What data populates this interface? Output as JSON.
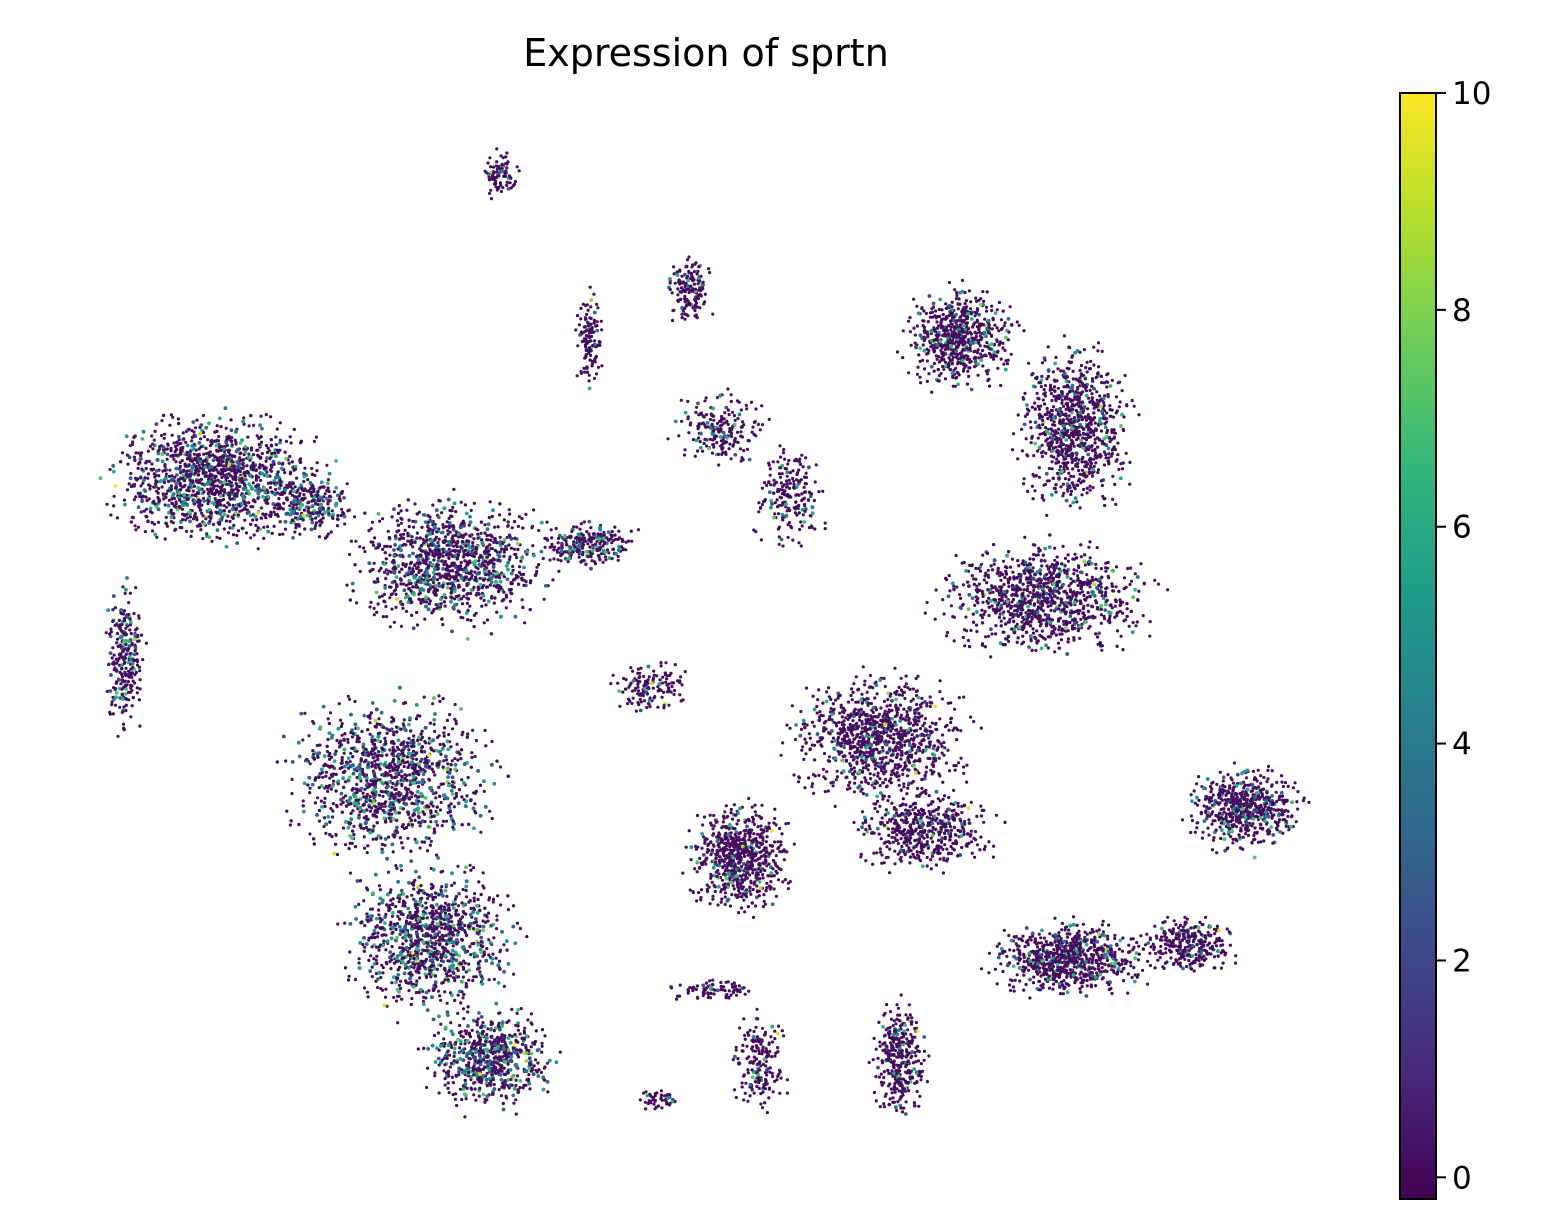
{
  "chart_data": {
    "type": "scatter",
    "title": "Expression of sprtn",
    "xlabel": "",
    "ylabel": "",
    "axes_visible": false,
    "grid": false,
    "legend": "none",
    "colorbar": {
      "placement": "right",
      "colormap": "viridis",
      "range": [
        -0.2,
        10
      ],
      "ticks": [
        0,
        2,
        4,
        6,
        8,
        10
      ],
      "tick_labels": [
        "0",
        "2",
        "4",
        "6",
        "8",
        "10"
      ],
      "colors": [
        "#440154",
        "#482878",
        "#3e4989",
        "#31688e",
        "#26828e",
        "#1f9e89",
        "#35b779",
        "#6ece58",
        "#b5de2b",
        "#fde725"
      ]
    },
    "point_color_low": "#440154",
    "cluster_expression_levels": {
      "left_top_cluster": 0.25,
      "left_arm": 0.2,
      "center_upper_cluster": 0.22,
      "left_lower_cluster": 0.3,
      "right_top_cluster": 0.12,
      "center_right_cluster": 0.1,
      "center_small_cluster": 0.1,
      "right_lower_cluster": 0.12,
      "right_far_cluster": 0.15
    }
  }
}
